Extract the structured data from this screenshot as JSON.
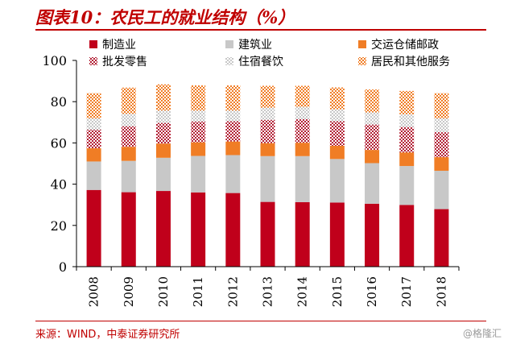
{
  "header": {
    "title": "图表10：农民工的就业结构（%）"
  },
  "footer": {
    "source": "来源：WIND，中泰证券研究所",
    "watermark": "@格隆汇"
  },
  "chart_data": {
    "type": "bar",
    "stacked": true,
    "categories": [
      "2008",
      "2009",
      "2010",
      "2011",
      "2012",
      "2013",
      "2014",
      "2015",
      "2016",
      "2017",
      "2018"
    ],
    "ylim": [
      0,
      100
    ],
    "yticks": [
      0,
      20,
      40,
      60,
      80,
      100
    ],
    "legend_position": "top",
    "series": [
      {
        "name": "制造业",
        "color": "#c0001b",
        "pattern": "solid",
        "values": [
          37.2,
          36.1,
          36.7,
          36.0,
          35.7,
          31.4,
          31.3,
          31.1,
          30.5,
          29.9,
          27.9
        ]
      },
      {
        "name": "建筑业",
        "color": "#c8c8c8",
        "pattern": "solid",
        "values": [
          13.8,
          15.2,
          16.1,
          17.7,
          18.4,
          22.2,
          22.3,
          21.1,
          19.7,
          18.9,
          18.6
        ]
      },
      {
        "name": "交运仓储邮政",
        "color": "#f07d25",
        "pattern": "solid",
        "values": [
          6.4,
          6.8,
          6.9,
          6.6,
          6.6,
          6.3,
          6.5,
          6.4,
          6.4,
          6.6,
          6.6
        ]
      },
      {
        "name": "批发零售",
        "color": "#b22035",
        "pattern": "cross",
        "values": [
          9.0,
          10.0,
          10.0,
          10.1,
          9.8,
          11.3,
          11.4,
          11.9,
          12.3,
          12.3,
          12.1
        ]
      },
      {
        "name": "住宿餐饮",
        "color": "#c8c8c8",
        "pattern": "cross",
        "values": [
          5.5,
          6.0,
          6.0,
          5.3,
          5.2,
          5.9,
          6.0,
          5.8,
          5.9,
          6.2,
          6.7
        ]
      },
      {
        "name": "居民和其他服务",
        "color": "#f07d25",
        "pattern": "cross",
        "values": [
          12.2,
          12.7,
          12.7,
          12.2,
          12.2,
          10.6,
          10.2,
          10.6,
          11.1,
          11.3,
          12.2
        ]
      }
    ]
  }
}
